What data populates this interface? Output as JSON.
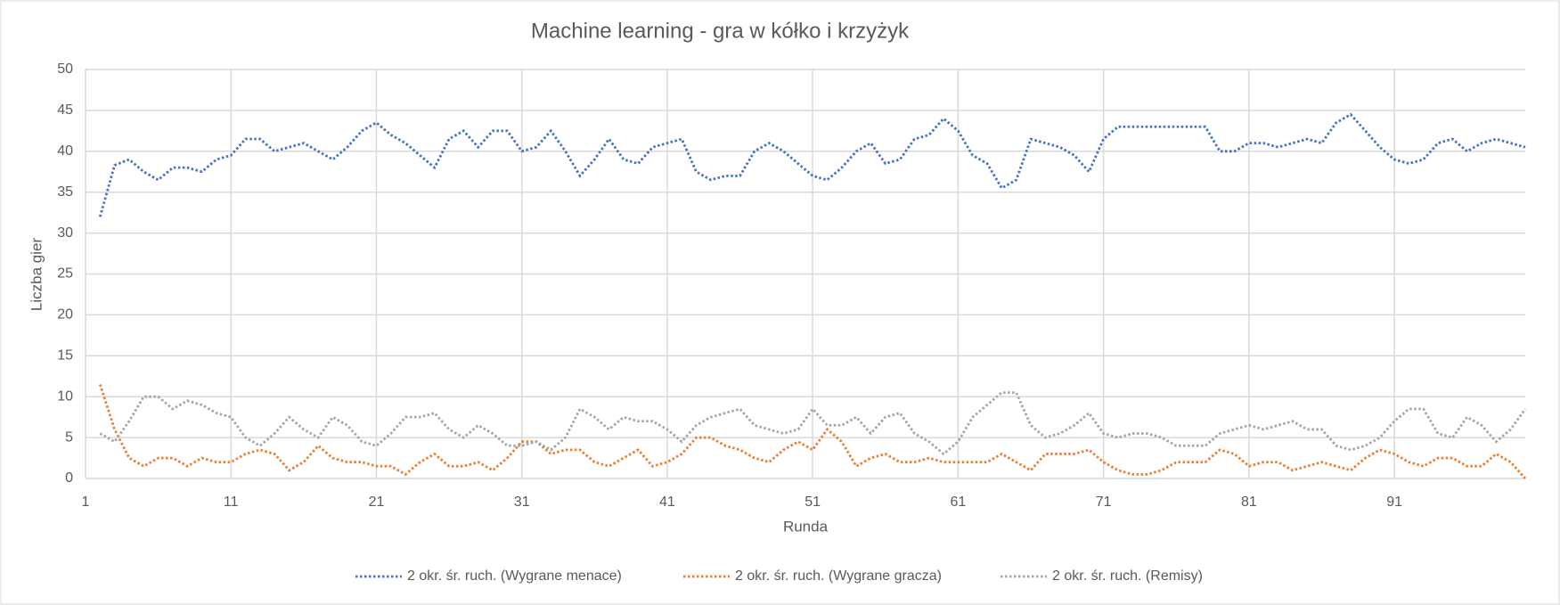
{
  "chart_data": {
    "type": "line",
    "title": "Machine learning - gra w kółko i krzyżyk",
    "x_label": "Runda",
    "y_label": "Liczba gier",
    "x": [
      2,
      3,
      4,
      5,
      6,
      7,
      8,
      9,
      10,
      11,
      12,
      13,
      14,
      15,
      16,
      17,
      18,
      19,
      20,
      21,
      22,
      23,
      24,
      25,
      26,
      27,
      28,
      29,
      30,
      31,
      32,
      33,
      34,
      35,
      36,
      37,
      38,
      39,
      40,
      41,
      42,
      43,
      44,
      45,
      46,
      47,
      48,
      49,
      50,
      51,
      52,
      53,
      54,
      55,
      56,
      57,
      58,
      59,
      60,
      61,
      62,
      63,
      64,
      65,
      66,
      67,
      68,
      69,
      70,
      71,
      72,
      73,
      74,
      75,
      76,
      77,
      78,
      79,
      80,
      81,
      82,
      83,
      84,
      85,
      86,
      87,
      88,
      89,
      90,
      91,
      92,
      93,
      94,
      95,
      96,
      97,
      98,
      99,
      100
    ],
    "series": [
      {
        "name": "2 okr. śr. ruch. (Wygrane menace)",
        "color": "#4472c4",
        "values": [
          32,
          38.3,
          39,
          37.5,
          36.5,
          38,
          38,
          37.5,
          39,
          39.5,
          41.5,
          41.5,
          40,
          40.5,
          41,
          40,
          39,
          40.5,
          42.5,
          43.5,
          42,
          41,
          39.5,
          38,
          41.5,
          42.5,
          40.5,
          42.5,
          42.5,
          40,
          40.5,
          42.5,
          40,
          37,
          39,
          41.5,
          39,
          38.5,
          40.5,
          41,
          41.5,
          37.5,
          36.5,
          37,
          37,
          40,
          41,
          40,
          38.5,
          37,
          36.5,
          38,
          40,
          41,
          38.5,
          39,
          41.5,
          42,
          44,
          42.5,
          39.5,
          38.5,
          35.5,
          36.5,
          41.5,
          41,
          40.5,
          39.5,
          37.5,
          41.5,
          43,
          43,
          43,
          43,
          43,
          43,
          43,
          40,
          40,
          41,
          41,
          40.5,
          41,
          41.5,
          41,
          43.5,
          44.5,
          42.5,
          40.5,
          39,
          38.5,
          39,
          41,
          41.5,
          40,
          41,
          41.5,
          41,
          40.5
        ]
      },
      {
        "name": "2 okr. śr. ruch. (Wygrane gracza)",
        "color": "#ed7d31",
        "values": [
          11.5,
          6,
          2.5,
          1.5,
          2.5,
          2.5,
          1.5,
          2.5,
          2,
          2,
          3,
          3.5,
          3,
          1,
          2,
          4,
          2.5,
          2,
          2,
          1.5,
          1.5,
          0.5,
          2,
          3,
          1.5,
          1.5,
          2,
          1,
          2.5,
          4.5,
          4.5,
          3,
          3.5,
          3.5,
          2,
          1.5,
          2.5,
          3.5,
          1.5,
          2,
          3,
          5,
          5,
          4,
          3.5,
          2.5,
          2,
          3.5,
          4.5,
          3.5,
          6,
          4.5,
          1.5,
          2.5,
          3,
          2,
          2,
          2.5,
          2,
          2,
          2,
          2,
          3,
          2,
          1,
          3,
          3,
          3,
          3.5,
          2,
          1,
          0.5,
          0.5,
          1,
          2,
          2,
          2,
          3.5,
          3,
          1.5,
          2,
          2,
          1,
          1.5,
          2,
          1.5,
          1,
          2.5,
          3.5,
          3,
          2,
          1.5,
          2.5,
          2.5,
          1.5,
          1.5,
          3,
          2,
          0
        ]
      },
      {
        "name": "2 okr. śr. ruch. (Remisy)",
        "color": "#a5a5a5",
        "values": [
          5.5,
          4.5,
          7,
          10,
          10,
          8.5,
          9.5,
          9,
          8,
          7.5,
          5,
          4,
          5.5,
          7.5,
          6,
          5,
          7.5,
          6.5,
          4.5,
          4,
          5.5,
          7.5,
          7.5,
          8,
          6,
          5,
          6.5,
          5.5,
          4,
          4,
          4.5,
          3.5,
          5,
          8.5,
          7.5,
          6,
          7.5,
          7,
          7,
          6,
          4.5,
          6.5,
          7.5,
          8,
          8.5,
          6.5,
          6,
          5.5,
          6,
          8.5,
          6.5,
          6.5,
          7.5,
          5.5,
          7.5,
          8,
          5.5,
          4.5,
          3,
          4.5,
          7.5,
          9,
          10.5,
          10.5,
          6.5,
          5,
          5.5,
          6.5,
          8,
          5.5,
          5,
          5.5,
          5.5,
          5,
          4,
          4,
          4,
          5.5,
          6,
          6.5,
          6,
          6.5,
          7,
          6,
          6,
          4,
          3.5,
          4,
          5,
          7,
          8.5,
          8.5,
          5.5,
          5,
          7.5,
          6.5,
          4.5,
          6,
          8.5
        ]
      }
    ],
    "xlim": [
      1,
      100
    ],
    "xticks": [
      1,
      11,
      21,
      31,
      41,
      51,
      61,
      71,
      81,
      91
    ],
    "ylim": [
      0,
      50
    ],
    "yticks": [
      0,
      5,
      10,
      15,
      20,
      25,
      30,
      35,
      40,
      45,
      50
    ],
    "grid": true,
    "legend": "bottom"
  }
}
